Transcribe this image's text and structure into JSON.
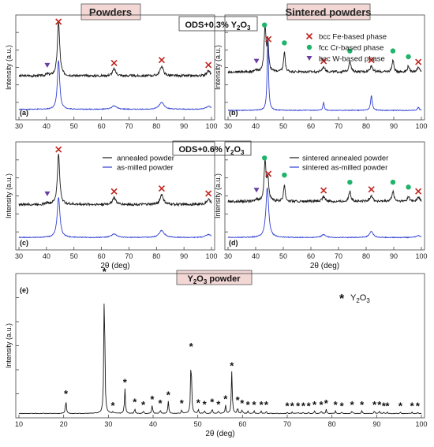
{
  "figure": {
    "header_left": "Powders",
    "header_right": "Sintered powders",
    "header_bg": "#f2d7d5",
    "ods_top": "ODS+0.3% Y",
    "ods_top_tail": "O",
    "ods_mid": "ODS+0.6% Y",
    "ods_mid_tail": "O",
    "sub2": "2",
    "sub3": "3",
    "y2o3_title": "Y",
    "y2o3_title_tail": "O",
    "y2o3_title_end": " powder",
    "ylabel": "Intensity (a.u.)",
    "xlabel": "2θ (deg)",
    "legend_phase": [
      {
        "label": "bcc Fe-based phase",
        "marker": "cross",
        "color": "#c0241f"
      },
      {
        "label": "fcc Cr-based phase",
        "marker": "dot",
        "color": "#1fb36b"
      },
      {
        "label": "bcc W-based phase",
        "marker": "triangle",
        "color": "#6a3ea1"
      }
    ],
    "legend_powder": [
      {
        "label": "annealed powder",
        "color": "#1a1a1a"
      },
      {
        "label": "as-milled powder",
        "color": "#2f3fd0"
      }
    ],
    "legend_sintered": [
      {
        "label": "sintered annealed powder",
        "color": "#1a1a1a"
      },
      {
        "label": "sintered as-milled powder",
        "color": "#2f3fd0"
      }
    ],
    "legend_y2o3": {
      "symbol": "*",
      "label": "Y",
      "tail": "O"
    }
  },
  "chart_data": [
    {
      "panel": "(a)",
      "type": "line",
      "xlim": [
        30,
        100
      ],
      "x_ticks": [
        30,
        40,
        50,
        60,
        70,
        80,
        90,
        100
      ],
      "series": [
        {
          "name": "annealed powder",
          "color": "#1a1a1a",
          "baseline": 0.43,
          "noise": 0.012,
          "peaks": [
            [
              44.4,
              0.55,
              0.5
            ],
            [
              64.6,
              0.07,
              0.7
            ],
            [
              81.9,
              0.1,
              0.7
            ],
            [
              98.9,
              0.05,
              0.8
            ],
            [
              40.3,
              0.015,
              0.6
            ]
          ]
        },
        {
          "name": "as-milled powder",
          "color": "#2f3fd0",
          "baseline": 0.09,
          "noise": 0.004,
          "peaks": [
            [
              44.4,
              0.5,
              0.5
            ],
            [
              64.6,
              0.035,
              1.1
            ],
            [
              81.9,
              0.07,
              1.1
            ],
            [
              98.9,
              0.03,
              1.2
            ]
          ]
        }
      ],
      "markers": [
        {
          "type": "cross",
          "x": 44.4
        },
        {
          "type": "cross",
          "x": 64.6
        },
        {
          "type": "cross",
          "x": 81.9
        },
        {
          "type": "cross",
          "x": 98.9
        },
        {
          "type": "triangle",
          "x": 40.3
        }
      ]
    },
    {
      "panel": "(b)",
      "type": "line",
      "xlim": [
        30,
        100
      ],
      "x_ticks": [
        30,
        40,
        50,
        60,
        70,
        80,
        90,
        100
      ],
      "series": [
        {
          "name": "sintered annealed powder",
          "color": "#1a1a1a",
          "baseline": 0.47,
          "noise": 0.012,
          "peaks": [
            [
              43.4,
              0.45,
              0.4
            ],
            [
              44.4,
              0.3,
              0.35
            ],
            [
              50.4,
              0.2,
              0.35
            ],
            [
              64.6,
              0.05,
              0.6
            ],
            [
              74.1,
              0.12,
              0.4
            ],
            [
              81.9,
              0.06,
              0.6
            ],
            [
              89.7,
              0.12,
              0.4
            ],
            [
              95.3,
              0.06,
              0.4
            ],
            [
              98.9,
              0.04,
              0.6
            ],
            [
              40.3,
              0.015,
              0.5
            ]
          ]
        },
        {
          "name": "sintered as-milled powder",
          "color": "#2f3fd0",
          "baseline": 0.08,
          "noise": 0.004,
          "peaks": [
            [
              44.4,
              0.72,
              0.3
            ],
            [
              64.6,
              0.08,
              0.3
            ],
            [
              81.9,
              0.15,
              0.35
            ],
            [
              98.9,
              0.03,
              0.4
            ]
          ]
        }
      ],
      "markers": [
        {
          "type": "dot",
          "x": 43.2
        },
        {
          "type": "cross",
          "x": 44.6
        },
        {
          "type": "dot",
          "x": 50.4
        },
        {
          "type": "cross",
          "x": 64.6
        },
        {
          "type": "dot",
          "x": 74.1
        },
        {
          "type": "cross",
          "x": 81.9
        },
        {
          "type": "dot",
          "x": 89.7
        },
        {
          "type": "dot",
          "x": 95.3
        },
        {
          "type": "cross",
          "x": 98.9
        },
        {
          "type": "triangle",
          "x": 40.3
        }
      ]
    },
    {
      "panel": "(c)",
      "type": "line",
      "xlim": [
        30,
        100
      ],
      "x_ticks": [
        30,
        40,
        50,
        60,
        70,
        80,
        90,
        100
      ],
      "series": [
        {
          "name": "annealed powder",
          "color": "#1a1a1a",
          "baseline": 0.43,
          "noise": 0.012,
          "peaks": [
            [
              44.4,
              0.5,
              0.5
            ],
            [
              64.6,
              0.07,
              0.7
            ],
            [
              81.9,
              0.1,
              0.7
            ],
            [
              98.9,
              0.05,
              0.8
            ],
            [
              40.3,
              0.015,
              0.6
            ]
          ]
        },
        {
          "name": "as-milled powder",
          "color": "#2f3fd0",
          "baseline": 0.1,
          "noise": 0.004,
          "peaks": [
            [
              44.4,
              0.4,
              0.6
            ],
            [
              64.6,
              0.035,
              1.1
            ],
            [
              81.9,
              0.07,
              1.1
            ],
            [
              98.9,
              0.03,
              1.2
            ]
          ]
        }
      ],
      "markers": [
        {
          "type": "cross",
          "x": 44.4
        },
        {
          "type": "cross",
          "x": 64.6
        },
        {
          "type": "cross",
          "x": 81.9
        },
        {
          "type": "cross",
          "x": 98.9
        },
        {
          "type": "triangle",
          "x": 40.3
        }
      ]
    },
    {
      "panel": "(d)",
      "type": "line",
      "xlim": [
        30,
        100
      ],
      "x_ticks": [
        30,
        40,
        50,
        60,
        70,
        80,
        90,
        100
      ],
      "series": [
        {
          "name": "sintered annealed powder",
          "color": "#1a1a1a",
          "baseline": 0.46,
          "noise": 0.012,
          "peaks": [
            [
              43.4,
              0.4,
              0.4
            ],
            [
              44.4,
              0.22,
              0.4
            ],
            [
              50.4,
              0.17,
              0.35
            ],
            [
              64.6,
              0.05,
              0.6
            ],
            [
              74.1,
              0.1,
              0.45
            ],
            [
              81.9,
              0.06,
              0.6
            ],
            [
              89.7,
              0.1,
              0.45
            ],
            [
              95.3,
              0.05,
              0.45
            ],
            [
              98.9,
              0.04,
              0.6
            ],
            [
              40.3,
              0.02,
              0.5
            ]
          ]
        },
        {
          "name": "sintered as-milled powder",
          "color": "#2f3fd0",
          "baseline": 0.1,
          "noise": 0.004,
          "peaks": [
            [
              44.2,
              0.5,
              0.6
            ],
            [
              64.6,
              0.03,
              0.8
            ],
            [
              81.9,
              0.06,
              0.8
            ],
            [
              98.9,
              0.02,
              0.8
            ]
          ]
        }
      ],
      "markers": [
        {
          "type": "dot",
          "x": 43.2
        },
        {
          "type": "cross",
          "x": 44.6
        },
        {
          "type": "dot",
          "x": 50.4
        },
        {
          "type": "cross",
          "x": 64.6
        },
        {
          "type": "dot",
          "x": 74.1
        },
        {
          "type": "cross",
          "x": 81.9
        },
        {
          "type": "dot",
          "x": 89.7
        },
        {
          "type": "dot",
          "x": 95.3
        },
        {
          "type": "cross",
          "x": 98.9
        },
        {
          "type": "triangle",
          "x": 40.3
        }
      ]
    },
    {
      "panel": "(e)",
      "type": "line",
      "xlim": [
        10,
        100
      ],
      "x_ticks": [
        10,
        20,
        30,
        40,
        50,
        60,
        70,
        80,
        90,
        100
      ],
      "series": [
        {
          "name": "",
          "color": "#1a1a1a",
          "baseline": 0.02,
          "noise": 0.002,
          "peaks": [
            [
              20.5,
              0.1,
              0.12
            ],
            [
              29.1,
              1.0,
              0.12
            ],
            [
              31.0,
              0.01,
              0.1
            ],
            [
              33.7,
              0.18,
              0.12
            ],
            [
              35.9,
              0.04,
              0.1
            ],
            [
              37.8,
              0.02,
              0.1
            ],
            [
              39.8,
              0.06,
              0.12
            ],
            [
              41.6,
              0.03,
              0.1
            ],
            [
              43.4,
              0.09,
              0.12
            ],
            [
              46.4,
              0.03,
              0.1
            ],
            [
              48.5,
              0.44,
              0.12
            ],
            [
              50.1,
              0.03,
              0.1
            ],
            [
              51.5,
              0.02,
              0.1
            ],
            [
              53.2,
              0.04,
              0.1
            ],
            [
              54.6,
              0.02,
              0.1
            ],
            [
              56.2,
              0.06,
              0.12
            ],
            [
              57.6,
              0.3,
              0.12
            ],
            [
              58.9,
              0.05,
              0.1
            ],
            [
              59.9,
              0.03,
              0.1
            ],
            [
              61.2,
              0.02,
              0.1
            ],
            [
              62.6,
              0.02,
              0.1
            ],
            [
              64.2,
              0.02,
              0.1
            ],
            [
              65.3,
              0.02,
              0.1
            ],
            [
              70.0,
              0.01,
              0.1
            ],
            [
              71.1,
              0.01,
              0.1
            ],
            [
              72.4,
              0.01,
              0.1
            ],
            [
              73.6,
              0.01,
              0.1
            ],
            [
              74.8,
              0.01,
              0.1
            ],
            [
              76.1,
              0.02,
              0.1
            ],
            [
              77.6,
              0.02,
              0.1
            ],
            [
              78.7,
              0.03,
              0.1
            ],
            [
              80.8,
              0.02,
              0.1
            ],
            [
              82.2,
              0.01,
              0.1
            ],
            [
              84.5,
              0.02,
              0.1
            ],
            [
              86.7,
              0.02,
              0.1
            ],
            [
              89.5,
              0.02,
              0.1
            ],
            [
              90.6,
              0.02,
              0.1
            ],
            [
              91.6,
              0.01,
              0.1
            ],
            [
              92.4,
              0.01,
              0.1
            ],
            [
              95.3,
              0.01,
              0.1
            ],
            [
              97.9,
              0.01,
              0.1
            ],
            [
              99.2,
              0.01,
              0.1
            ]
          ]
        }
      ],
      "markers": [
        {
          "type": "star",
          "x": 20.5
        },
        {
          "type": "star",
          "x": 29.1
        },
        {
          "type": "star",
          "x": 31.0
        },
        {
          "type": "star",
          "x": 33.7
        },
        {
          "type": "star",
          "x": 35.9
        },
        {
          "type": "star",
          "x": 37.8
        },
        {
          "type": "star",
          "x": 39.8
        },
        {
          "type": "star",
          "x": 41.6
        },
        {
          "type": "star",
          "x": 43.4
        },
        {
          "type": "star",
          "x": 46.4
        },
        {
          "type": "star",
          "x": 48.5
        },
        {
          "type": "star",
          "x": 50.1
        },
        {
          "type": "star",
          "x": 51.5
        },
        {
          "type": "star",
          "x": 53.2
        },
        {
          "type": "star",
          "x": 54.6
        },
        {
          "type": "star",
          "x": 56.2
        },
        {
          "type": "star",
          "x": 57.6
        },
        {
          "type": "star",
          "x": 58.9
        },
        {
          "type": "star",
          "x": 59.9
        },
        {
          "type": "star",
          "x": 61.2
        },
        {
          "type": "star",
          "x": 62.6
        },
        {
          "type": "star",
          "x": 64.2
        },
        {
          "type": "star",
          "x": 65.3
        },
        {
          "type": "star",
          "x": 70.0
        },
        {
          "type": "star",
          "x": 71.1
        },
        {
          "type": "star",
          "x": 72.4
        },
        {
          "type": "star",
          "x": 73.6
        },
        {
          "type": "star",
          "x": 74.8
        },
        {
          "type": "star",
          "x": 76.1
        },
        {
          "type": "star",
          "x": 77.6
        },
        {
          "type": "star",
          "x": 78.7
        },
        {
          "type": "star",
          "x": 80.8
        },
        {
          "type": "star",
          "x": 82.2
        },
        {
          "type": "star",
          "x": 84.5
        },
        {
          "type": "star",
          "x": 86.7
        },
        {
          "type": "star",
          "x": 89.5
        },
        {
          "type": "star",
          "x": 90.6
        },
        {
          "type": "star",
          "x": 91.6
        },
        {
          "type": "star",
          "x": 92.4
        },
        {
          "type": "star",
          "x": 95.3
        },
        {
          "type": "star",
          "x": 97.9
        },
        {
          "type": "star",
          "x": 99.2
        }
      ]
    }
  ]
}
